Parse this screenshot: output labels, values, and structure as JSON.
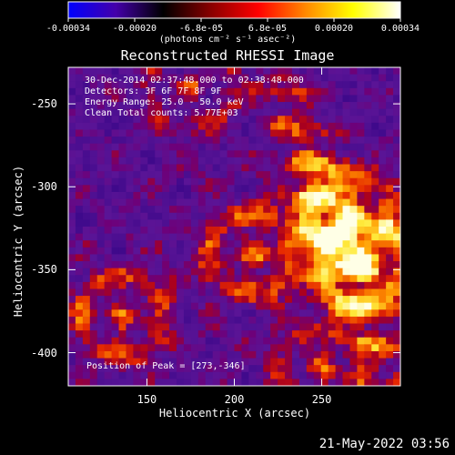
{
  "colorbar": {
    "ticks": [
      "-0.00034",
      "-0.00020",
      "-6.8e-05",
      "6.8e-05",
      "0.00020",
      "0.00034"
    ],
    "units": "(photons cm⁻² s⁻¹ asec⁻²)",
    "range": [
      -0.00034,
      0.00034
    ],
    "colors": [
      "#0000ff",
      "#4400aa",
      "#000000",
      "#880000",
      "#ff0000",
      "#ff8800",
      "#ffff00",
      "#ffffff"
    ]
  },
  "title": "Reconstructed RHESSI Image",
  "annotations": {
    "time": "30-Dec-2014 02:37:48.000 to 02:38:48.000",
    "detectors": "Detectors: 3F 6F 7F 8F 9F",
    "energy": "Energy Range: 25.0 - 50.0 keV",
    "clean": "Clean    Total counts: 5.77E+03",
    "peak": "Position of Peak = [273,-346]"
  },
  "timestamp": "21-May-2022 03:56",
  "chart_data": {
    "type": "heatmap",
    "title": "Reconstructed RHESSI Image",
    "xlabel": "Heliocentric X (arcsec)",
    "ylabel": "Heliocentric Y (arcsec)",
    "xlim": [
      105,
      295
    ],
    "ylim": [
      -420,
      -228
    ],
    "x_ticks": [
      "150",
      "200",
      "250"
    ],
    "x_tick_values": [
      150,
      200,
      250
    ],
    "y_ticks": [
      "-250",
      "-300",
      "-350",
      "-400"
    ],
    "y_tick_values": [
      -250,
      -300,
      -350,
      -400
    ],
    "value_range": [
      -0.00034,
      0.00034
    ],
    "sources": [
      {
        "x": 136,
        "y": -378,
        "relative_intensity": 0.85
      },
      {
        "x": 210,
        "y": -340,
        "relative_intensity": 0.9
      },
      {
        "x": 266,
        "y": -318,
        "relative_intensity": 0.95
      },
      {
        "x": 273,
        "y": -346,
        "relative_intensity": 1.0
      },
      {
        "x": 250,
        "y": -410,
        "relative_intensity": 0.7
      },
      {
        "x": 175,
        "y": -240,
        "relative_intensity": 0.55
      }
    ]
  }
}
